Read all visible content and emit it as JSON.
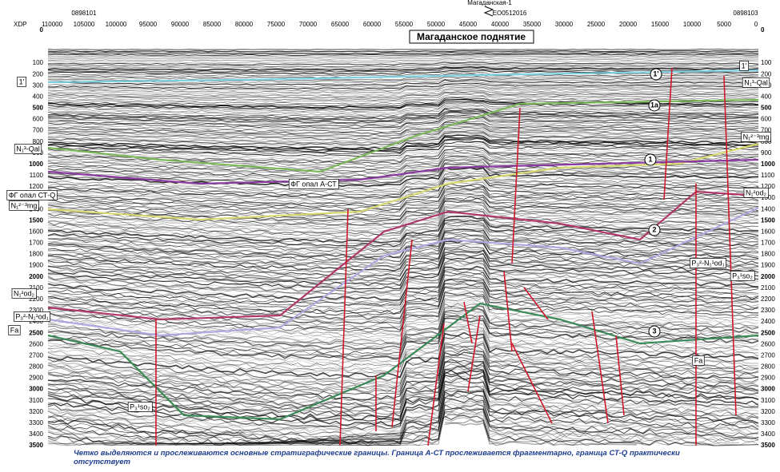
{
  "header": {
    "x_axis_name": "XDP",
    "wells": [
      "0898101",
      "EO0512016",
      "0898103"
    ],
    "well_name": "Магаданская-1"
  },
  "title": "Магаданское поднятие",
  "x_ticks": [
    110000,
    105000,
    100000,
    95000,
    90000,
    85000,
    80000,
    75000,
    70000,
    65000,
    60000,
    55000,
    50000,
    45000,
    40000,
    35000,
    30000,
    25000,
    20000,
    15000,
    10000,
    5000,
    0
  ],
  "depth_ticks": [
    0,
    100,
    200,
    300,
    400,
    500,
    600,
    700,
    800,
    900,
    1000,
    1100,
    1200,
    1300,
    1400,
    1500,
    1600,
    1700,
    1800,
    1900,
    2000,
    2100,
    2200,
    2300,
    2400,
    2500,
    2600,
    2700,
    2800,
    2900,
    3000,
    3100,
    3200,
    3300,
    3400,
    3500
  ],
  "horizon_labels": [
    "1'",
    "1'",
    "1'",
    "N₁³-Qal",
    "N₁³-Qal",
    "1а",
    "N₁²⁻³mg",
    "N₁²⁻³mg",
    "1",
    "ФГ опал А-СТ",
    "ФГ опал СТ-Q",
    "N₁²od₂",
    "N₁²od₂",
    "2",
    "P₃²-N₁¹od₁",
    "P₃²-N₁¹od₁",
    "P₃¹so₂",
    "P₃¹so₂",
    "Fa",
    "Fa",
    "3"
  ],
  "caption": "Четко выделяются и прослеживаются основные стратиграфические границы. Граница А-СТ прослеживается фрагментарно, граница СТ-Q практически отсутствует"
}
